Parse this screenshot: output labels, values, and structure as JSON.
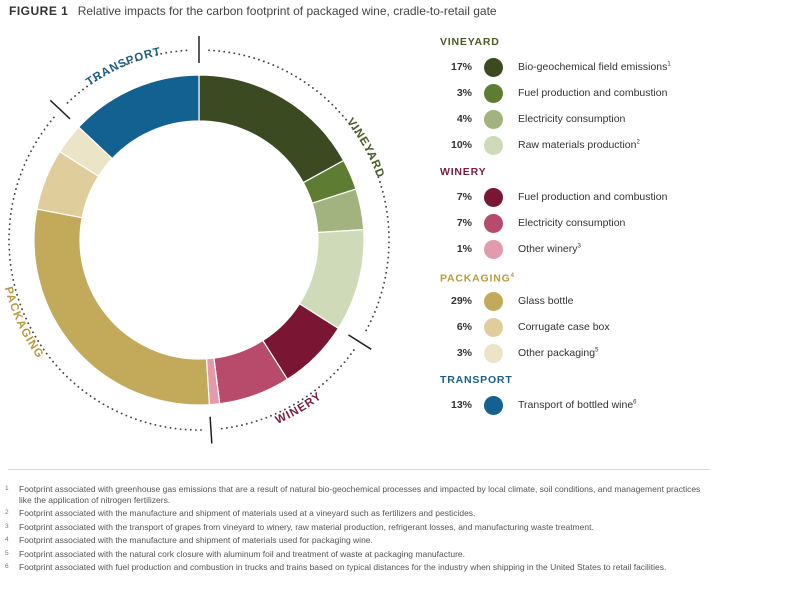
{
  "figure": {
    "label": "FIGURE 1",
    "title": "Relative impacts for the carbon footprint of packaged wine, cradle-to-retail gate"
  },
  "chart_data": {
    "type": "pie",
    "variant": "donut",
    "title": "Relative impacts for the carbon footprint of packaged wine, cradle-to-retail gate",
    "unit": "%",
    "groups": [
      {
        "name": "VINEYARD",
        "color": "#4b5c26",
        "items": [
          {
            "label": "Bio-geochemical field emissions",
            "note": "1",
            "value": 17,
            "color": "#3c4a22"
          },
          {
            "label": "Fuel production and combustion",
            "note": "",
            "value": 3,
            "color": "#5e7d32"
          },
          {
            "label": "Electricity consumption",
            "note": "",
            "value": 4,
            "color": "#a2b37f"
          },
          {
            "label": "Raw materials production",
            "note": "2",
            "value": 10,
            "color": "#cfdab8"
          }
        ]
      },
      {
        "name": "WINERY",
        "color": "#7a1f3c",
        "items": [
          {
            "label": "Fuel production and combustion",
            "note": "",
            "value": 7,
            "color": "#7a1634"
          },
          {
            "label": "Electricity consumption",
            "note": "",
            "value": 7,
            "color": "#b84a6c"
          },
          {
            "label": "Other winery",
            "note": "3",
            "value": 1,
            "color": "#e29aac"
          }
        ]
      },
      {
        "name": "PACKAGING",
        "note": "4",
        "color": "#b89a3e",
        "items": [
          {
            "label": "Glass bottle",
            "note": "",
            "value": 29,
            "color": "#c3aa5b"
          },
          {
            "label": "Corrugate case box",
            "note": "",
            "value": 6,
            "color": "#dfcd9c"
          },
          {
            "label": "Other packaging",
            "note": "5",
            "value": 3,
            "color": "#ebe4c6"
          }
        ]
      },
      {
        "name": "TRANSPORT",
        "color": "#1c5e86",
        "items": [
          {
            "label": "Transport of bottled wine",
            "note": "6",
            "value": 13,
            "color": "#136191"
          }
        ]
      }
    ]
  },
  "footnotes": [
    {
      "num": "1",
      "text": "Footprint associated with greenhouse gas emissions that are a result of natural bio-geochemical processes and impacted by local climate, soil conditions, and management practices like the application of nitrogen fertilizers."
    },
    {
      "num": "2",
      "text": "Footprint associated with the manufacture and shipment of materials used at a vineyard such as fertilizers and pesticides."
    },
    {
      "num": "3",
      "text": "Footprint associated with the transport of grapes from vineyard to winery, raw material production, refrigerant losses, and manufacturing waste treatment."
    },
    {
      "num": "4",
      "text": "Footprint associated with the manufacture and shipment of materials used for packaging wine."
    },
    {
      "num": "5",
      "text": "Footprint associated with the natural cork closure with aluminum foil and treatment of waste at packaging manufacture."
    },
    {
      "num": "6",
      "text": "Footprint associated with fuel production and combustion in trucks and trains based on typical distances for the industry when shipping in the United States to retail facilities."
    }
  ]
}
